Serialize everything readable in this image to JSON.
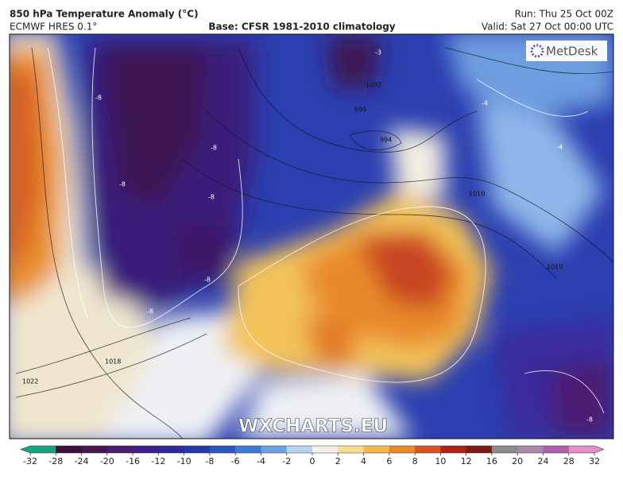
{
  "header": {
    "title": "850 hPa Temperature Anomaly (°C)",
    "model": "ECMWF HRES 0.1°",
    "base": "Base: CFSR 1981-2010 climatology",
    "run": "Run: Thu 25 Oct 00Z",
    "valid": "Valid: Sat 27 Oct 00:00 UTC"
  },
  "logo": "MetDesk",
  "watermark": "WXCHARTS.EU",
  "contour_labels": [
    "-8",
    "-8",
    "-8",
    "-8",
    "-8",
    "-8",
    "-4",
    "-4",
    "-3",
    "994",
    "999",
    "1002",
    "1010",
    "1010",
    "1018",
    "1022",
    "-8"
  ],
  "colorbar": {
    "ticks": [
      -32,
      -28,
      -24,
      -20,
      -16,
      -12,
      -10,
      -8,
      -6,
      -4,
      -2,
      0,
      2,
      4,
      6,
      8,
      10,
      12,
      16,
      20,
      24,
      28,
      32
    ],
    "colors": [
      "#1aa37f",
      "#3d0f3a",
      "#4a1450",
      "#4b1a72",
      "#3e1f8a",
      "#2e2a9c",
      "#2638ad",
      "#2f55c4",
      "#3f79d6",
      "#6ea3e3",
      "#b6d3f0",
      "#f4f1e6",
      "#f6dc8e",
      "#f2b84e",
      "#e98a2a",
      "#d45422",
      "#aa2418",
      "#7a1a14",
      "#8a8a8a",
      "#a88aaa",
      "#b05fa8",
      "#e48fc8"
    ]
  }
}
